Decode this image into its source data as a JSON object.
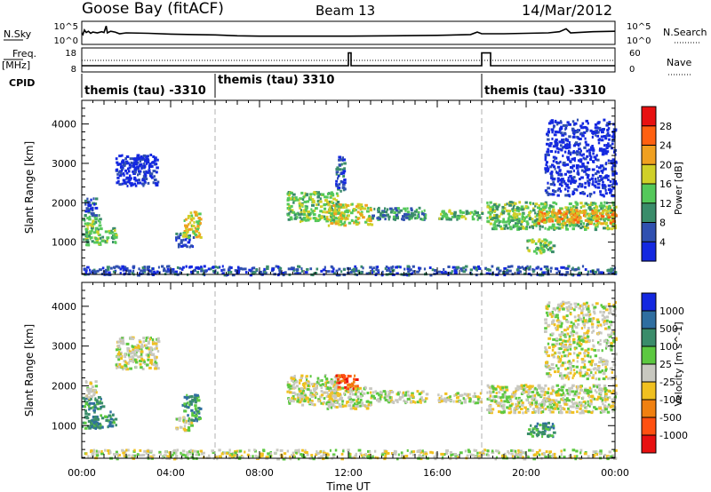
{
  "header": {
    "station": "Goose Bay (fitACF)",
    "beam": "Beam 13",
    "date": "14/Mar/2012"
  },
  "noise_panel": {
    "left_label": "N.Sky",
    "right_label": "N.Search",
    "left_ticks": [
      "10^5",
      "10^0"
    ],
    "right_ticks": [
      "10^5",
      "10^0"
    ],
    "sky_series": [
      [
        0.0,
        2.6
      ],
      [
        0.05,
        2.2
      ],
      [
        0.12,
        3.3
      ],
      [
        0.2,
        2.7
      ],
      [
        0.3,
        3.0
      ],
      [
        0.4,
        2.5
      ],
      [
        0.5,
        2.8
      ],
      [
        0.7,
        2.6
      ],
      [
        0.9,
        2.9
      ],
      [
        1.0,
        2.7
      ],
      [
        1.1,
        4.3
      ],
      [
        1.15,
        2.6
      ],
      [
        1.3,
        3.0
      ],
      [
        1.5,
        2.8
      ],
      [
        1.7,
        2.4
      ],
      [
        2.0,
        2.6
      ],
      [
        3.0,
        2.5
      ],
      [
        4.0,
        2.3
      ],
      [
        5.0,
        2.2
      ],
      [
        6.0,
        2.1
      ],
      [
        7.0,
        1.9
      ],
      [
        8.0,
        1.8
      ],
      [
        10.0,
        1.8
      ],
      [
        12.0,
        1.8
      ],
      [
        14.0,
        1.9
      ],
      [
        16.0,
        2.0
      ],
      [
        17.5,
        2.2
      ],
      [
        17.8,
        2.8
      ],
      [
        18.0,
        2.4
      ],
      [
        19.0,
        2.4
      ],
      [
        20.0,
        2.5
      ],
      [
        21.0,
        2.6
      ],
      [
        21.5,
        2.9
      ],
      [
        21.8,
        3.6
      ],
      [
        22.0,
        2.6
      ],
      [
        23.0,
        2.9
      ],
      [
        24.0,
        3.0
      ]
    ]
  },
  "freq_panel": {
    "left_label_1": "Freq.",
    "left_label_2": "[MHz]",
    "right_label": "Nave",
    "left_ticks": [
      "18",
      "8"
    ],
    "right_ticks": [
      "60",
      "0"
    ],
    "freq_series": [
      [
        0.0,
        10.5
      ],
      [
        12.0,
        10.5
      ],
      [
        12.0,
        16.5
      ],
      [
        12.12,
        16.5
      ],
      [
        12.12,
        10.5
      ],
      [
        18.0,
        10.5
      ],
      [
        18.0,
        16.5
      ],
      [
        18.4,
        16.5
      ],
      [
        18.4,
        10.5
      ],
      [
        24.0,
        10.5
      ]
    ],
    "nave_series": [
      [
        0.0,
        30
      ],
      [
        24.0,
        30
      ]
    ]
  },
  "cpid": {
    "label": "CPID",
    "segments": [
      {
        "start_h": 0.0,
        "end_h": 6.0,
        "text": "themis (tau) -3310"
      },
      {
        "start_h": 6.0,
        "end_h": 18.0,
        "text": "themis (tau) 3310"
      },
      {
        "start_h": 18.0,
        "end_h": 24.0,
        "text": "themis (tau) -3310"
      }
    ]
  },
  "chart_data": [
    {
      "type": "heatmap",
      "name": "power",
      "ylabel": "Slant Range [km]",
      "colorbar_label": "Power [dB]",
      "x_range_h": [
        0,
        24
      ],
      "y_range_km": [
        180,
        4600
      ],
      "yticks": [
        1000,
        2000,
        3000,
        4000
      ],
      "colorbar_ticks": [
        "4",
        "8",
        "12",
        "16",
        "20",
        "24",
        "28"
      ],
      "colorbar_colors": [
        "#1428e0",
        "#3050b0",
        "#3a8c6a",
        "#54c85a",
        "#d0d028",
        "#f0a020",
        "#ff6010",
        "#e81010"
      ],
      "regions": [
        {
          "t0": 0.0,
          "t1": 0.9,
          "r0": 950,
          "r1": 1750,
          "level": 3
        },
        {
          "t0": 0.1,
          "t1": 0.6,
          "r0": 1700,
          "r1": 2150,
          "level": 1
        },
        {
          "t0": 1.0,
          "t1": 1.5,
          "r0": 1000,
          "r1": 1400,
          "level": 3
        },
        {
          "t0": 1.5,
          "t1": 3.4,
          "r0": 2450,
          "r1": 3250,
          "level": 0
        },
        {
          "t0": 4.2,
          "t1": 5.0,
          "r0": 900,
          "r1": 1250,
          "level": 1
        },
        {
          "t0": 4.5,
          "t1": 5.3,
          "r0": 1150,
          "r1": 1800,
          "level": 4
        },
        {
          "t0": 0.0,
          "t1": 24.0,
          "r0": 190,
          "r1": 420,
          "level": 1
        },
        {
          "t0": 9.2,
          "t1": 11.5,
          "r0": 1550,
          "r1": 2300,
          "level": 3
        },
        {
          "t0": 11.0,
          "t1": 13.0,
          "r0": 1450,
          "r1": 2000,
          "level": 4
        },
        {
          "t0": 11.4,
          "t1": 11.8,
          "r0": 2300,
          "r1": 3200,
          "level": 1
        },
        {
          "t0": 13.0,
          "t1": 15.5,
          "r0": 1600,
          "r1": 1900,
          "level": 2
        },
        {
          "t0": 16.0,
          "t1": 18.0,
          "r0": 1600,
          "r1": 1850,
          "level": 3
        },
        {
          "t0": 18.2,
          "t1": 24.0,
          "r0": 1350,
          "r1": 2050,
          "level": 3
        },
        {
          "t0": 20.5,
          "t1": 24.0,
          "r0": 1500,
          "r1": 1850,
          "level": 5
        },
        {
          "t0": 20.0,
          "t1": 21.2,
          "r0": 750,
          "r1": 1100,
          "level": 3
        },
        {
          "t0": 20.8,
          "t1": 24.0,
          "r0": 2200,
          "r1": 4150,
          "level": 0
        }
      ]
    },
    {
      "type": "heatmap",
      "name": "velocity",
      "ylabel": "Slant Range [km]",
      "xlabel": "Time UT",
      "colorbar_label": "Velocity [m s^-1]",
      "x_range_h": [
        0,
        24
      ],
      "y_range_km": [
        180,
        4600
      ],
      "yticks": [
        1000,
        2000,
        3000,
        4000
      ],
      "xticks": [
        "00:00",
        "04:00",
        "08:00",
        "12:00",
        "16:00",
        "20:00",
        "00:00"
      ],
      "colorbar_ticks": [
        "1000",
        "500",
        "100",
        "25",
        "-25",
        "-100",
        "-500",
        "-1000"
      ],
      "colorbar_colors": [
        "#1428e0",
        "#2f6ea0",
        "#3a8c6a",
        "#5cc840",
        "#c8c8c0",
        "#f0c020",
        "#f08010",
        "#ff5010",
        "#e81010"
      ],
      "regions": [
        {
          "t0": 0.0,
          "t1": 0.9,
          "r0": 950,
          "r1": 1750,
          "level": 2
        },
        {
          "t0": 0.1,
          "t1": 0.6,
          "r0": 1700,
          "r1": 2150,
          "level": 4
        },
        {
          "t0": 1.0,
          "t1": 1.5,
          "r0": 1000,
          "r1": 1400,
          "level": 2
        },
        {
          "t0": 1.5,
          "t1": 3.4,
          "r0": 2450,
          "r1": 3250,
          "level": 4
        },
        {
          "t0": 4.2,
          "t1": 5.0,
          "r0": 900,
          "r1": 1250,
          "level": 4
        },
        {
          "t0": 4.5,
          "t1": 5.3,
          "r0": 1150,
          "r1": 1800,
          "level": 2
        },
        {
          "t0": 0.0,
          "t1": 24.0,
          "r0": 190,
          "r1": 420,
          "level": 4
        },
        {
          "t0": 9.2,
          "t1": 11.5,
          "r0": 1550,
          "r1": 2300,
          "level": 4
        },
        {
          "t0": 11.0,
          "t1": 13.0,
          "r0": 1450,
          "r1": 2000,
          "level": 4
        },
        {
          "t0": 11.4,
          "t1": 12.4,
          "r0": 1950,
          "r1": 2300,
          "level": 7
        },
        {
          "t0": 13.0,
          "t1": 15.5,
          "r0": 1600,
          "r1": 1900,
          "level": 4
        },
        {
          "t0": 16.0,
          "t1": 18.0,
          "r0": 1600,
          "r1": 1850,
          "level": 4
        },
        {
          "t0": 18.2,
          "t1": 24.0,
          "r0": 1350,
          "r1": 2050,
          "level": 4
        },
        {
          "t0": 20.0,
          "t1": 21.2,
          "r0": 750,
          "r1": 1100,
          "level": 2
        },
        {
          "t0": 20.8,
          "t1": 24.0,
          "r0": 2200,
          "r1": 4150,
          "level": 4
        }
      ]
    }
  ]
}
